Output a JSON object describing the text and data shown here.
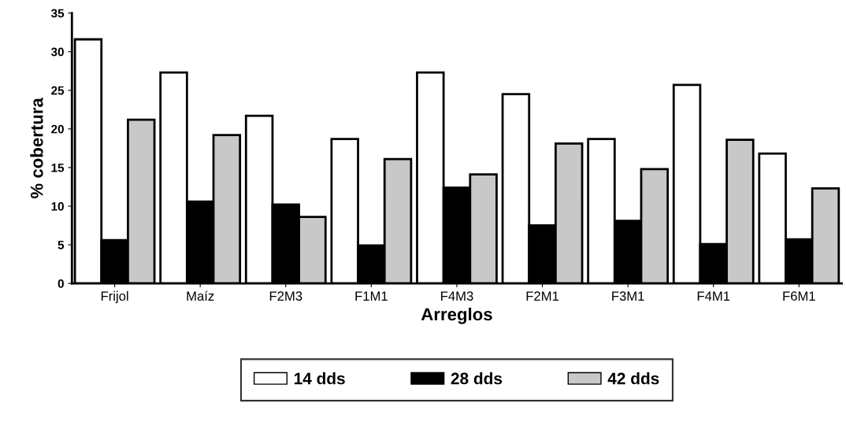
{
  "chart_data": {
    "type": "bar",
    "xlabel": "Arreglos",
    "ylabel": "% cobertura",
    "categories": [
      "Frijol",
      "Maíz",
      "F2M3",
      "F1M1",
      "F4M3",
      "F2M1",
      "F3M1",
      "F4M1",
      "F6M1"
    ],
    "series": [
      {
        "name": "14 dds",
        "color": "#ffffff",
        "values": [
          31.6,
          27.3,
          21.7,
          18.7,
          27.3,
          24.5,
          18.7,
          25.7,
          16.8
        ]
      },
      {
        "name": "28 dds",
        "color": "#000000",
        "values": [
          5.6,
          10.6,
          10.2,
          4.9,
          12.4,
          7.5,
          8.1,
          5.1,
          5.7
        ]
      },
      {
        "name": "42 dds",
        "color": "#c8c8c8",
        "values": [
          21.2,
          19.2,
          8.6,
          16.1,
          14.1,
          18.1,
          14.8,
          18.6,
          12.3
        ]
      }
    ],
    "ylim": [
      0,
      35
    ],
    "yticks": [
      0,
      5,
      10,
      15,
      20,
      25,
      30,
      35
    ],
    "grid": false,
    "legend": "bottom"
  }
}
